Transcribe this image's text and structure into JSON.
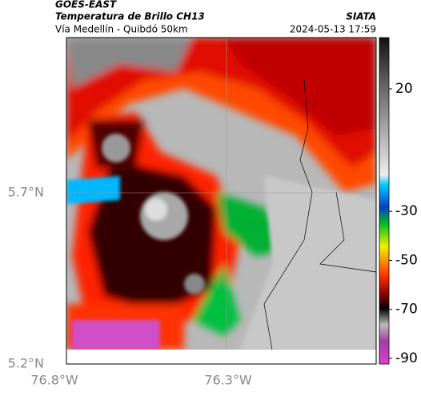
{
  "header": {
    "product": "GOES-EAST",
    "title": "Temperatura de Brillo CH13",
    "subtitle": "Vía Medellín - Quibdó 50km",
    "source": "SIATA",
    "timestamp": "2024-05-13 17:59"
  },
  "map": {
    "lat_labels": [
      "5.7°N",
      "5.2°N"
    ],
    "lon_labels": [
      "76.8°W",
      "76.3°W"
    ]
  },
  "colorbar": {
    "ticks": [
      20,
      -30,
      -50,
      -70,
      -90
    ]
  }
}
